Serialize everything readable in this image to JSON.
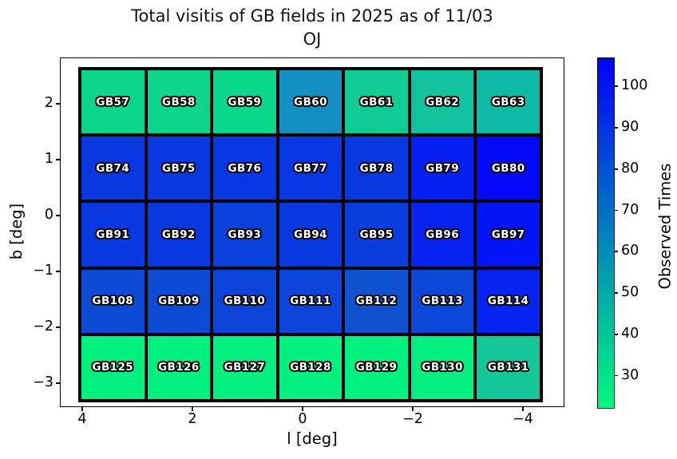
{
  "title": {
    "line1": "Total visitis of GB fields in 2025 as of 11/03",
    "line2": "OJ"
  },
  "axes": {
    "xlabel": "l [deg]",
    "ylabel": "b [deg]",
    "x_tick_labels": [
      "4",
      "2",
      "0",
      "−2",
      "−4"
    ],
    "y_tick_labels": [
      "2",
      "1",
      "0",
      "−1",
      "−2",
      "−3"
    ]
  },
  "colorbar": {
    "label": "Observed Times",
    "tick_labels": [
      "100",
      "90",
      "80",
      "70",
      "60",
      "50",
      "40",
      "30"
    ],
    "top_color": "#0101fb",
    "mid_color": "#0080c0",
    "bottom_color": "#00f97e"
  },
  "chart_data": {
    "type": "heatmap",
    "title": "Total visitis of GB fields in 2025 as of 11/03 OJ",
    "xlabel": "l [deg]",
    "ylabel": "b [deg]",
    "x_axis_ticks": [
      4,
      2,
      0,
      -2,
      -4
    ],
    "x_axis_inverted": true,
    "y_axis_ticks": [
      2,
      1,
      0,
      -1,
      -2,
      -3
    ],
    "colorbar_label": "Observed Times",
    "colorbar_ticks": [
      30,
      40,
      50,
      60,
      70,
      80,
      90,
      100
    ],
    "colorbar_range_estimate": [
      22,
      107
    ],
    "colormap": "green-to-blue (matplotlib winter reversed)",
    "grid_shape": [
      5,
      7
    ],
    "row_b_centers_estimate": [
      2.1,
      0.9,
      -0.3,
      -1.5,
      -2.7
    ],
    "col_l_centers_estimate": [
      3.5,
      2.3,
      1.1,
      -0.1,
      -1.3,
      -2.5,
      -3.7
    ],
    "rows": [
      {
        "cells": [
          {
            "label": "GB57",
            "observed_times_estimate": 37,
            "color": "#0bd48b"
          },
          {
            "label": "GB58",
            "observed_times_estimate": 37,
            "color": "#0bd48b"
          },
          {
            "label": "GB59",
            "observed_times_estimate": 36,
            "color": "#09d789"
          },
          {
            "label": "GB60",
            "observed_times_estimate": 60,
            "color": "#148fc2"
          },
          {
            "label": "GB61",
            "observed_times_estimate": 40,
            "color": "#12cc95"
          },
          {
            "label": "GB62",
            "observed_times_estimate": 43,
            "color": "#10c29d"
          },
          {
            "label": "GB63",
            "observed_times_estimate": 46,
            "color": "#0ebaa6"
          }
        ]
      },
      {
        "cells": [
          {
            "label": "GB74",
            "observed_times_estimate": 88,
            "color": "#0839e0"
          },
          {
            "label": "GB75",
            "observed_times_estimate": 88,
            "color": "#0839e0"
          },
          {
            "label": "GB76",
            "observed_times_estimate": 89,
            "color": "#0737e2"
          },
          {
            "label": "GB77",
            "observed_times_estimate": 89,
            "color": "#0737e2"
          },
          {
            "label": "GB78",
            "observed_times_estimate": 88,
            "color": "#0839e0"
          },
          {
            "label": "GB79",
            "observed_times_estimate": 96,
            "color": "#0420f2"
          },
          {
            "label": "GB80",
            "observed_times_estimate": 104,
            "color": "#0209fa"
          }
        ]
      },
      {
        "cells": [
          {
            "label": "GB91",
            "observed_times_estimate": 88,
            "color": "#0839e0"
          },
          {
            "label": "GB92",
            "observed_times_estimate": 88,
            "color": "#0839e0"
          },
          {
            "label": "GB93",
            "observed_times_estimate": 86,
            "color": "#0a41db"
          },
          {
            "label": "GB94",
            "observed_times_estimate": 88,
            "color": "#0839e0"
          },
          {
            "label": "GB95",
            "observed_times_estimate": 87,
            "color": "#093edd"
          },
          {
            "label": "GB96",
            "observed_times_estimate": 96,
            "color": "#0522f1"
          },
          {
            "label": "GB97",
            "observed_times_estimate": 101,
            "color": "#0314f7"
          }
        ]
      },
      {
        "cells": [
          {
            "label": "GB108",
            "observed_times_estimate": 83,
            "color": "#0d4bd5"
          },
          {
            "label": "GB109",
            "observed_times_estimate": 83,
            "color": "#0d4bd5"
          },
          {
            "label": "GB110",
            "observed_times_estimate": 85,
            "color": "#0b44d9"
          },
          {
            "label": "GB111",
            "observed_times_estimate": 85,
            "color": "#0b45d9"
          },
          {
            "label": "GB112",
            "observed_times_estimate": 80,
            "color": "#0e52cf"
          },
          {
            "label": "GB113",
            "observed_times_estimate": 84,
            "color": "#0c48d7"
          },
          {
            "label": "GB114",
            "observed_times_estimate": 96,
            "color": "#0523f0"
          }
        ]
      },
      {
        "cells": [
          {
            "label": "GB125",
            "observed_times_estimate": 27,
            "color": "#00f07f"
          },
          {
            "label": "GB126",
            "observed_times_estimate": 27,
            "color": "#00f07f"
          },
          {
            "label": "GB127",
            "observed_times_estimate": 27,
            "color": "#01ef7f"
          },
          {
            "label": "GB128",
            "observed_times_estimate": 27,
            "color": "#01ef7f"
          },
          {
            "label": "GB129",
            "observed_times_estimate": 27,
            "color": "#00f07f"
          },
          {
            "label": "GB130",
            "observed_times_estimate": 28,
            "color": "#02ee80"
          },
          {
            "label": "GB131",
            "observed_times_estimate": 42,
            "color": "#14c799"
          }
        ]
      }
    ]
  }
}
